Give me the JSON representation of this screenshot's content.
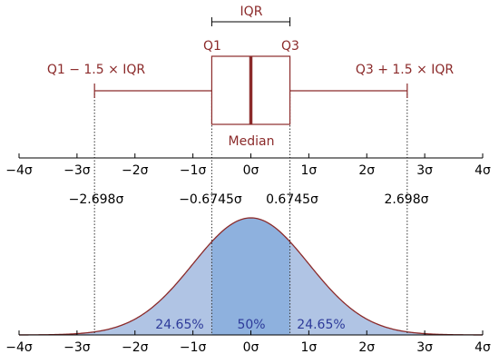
{
  "chart_data": {
    "type": "box-and-normal-distribution",
    "boxplot": {
      "iqr_label": "IQR",
      "q1_label": "Q1",
      "q3_label": "Q3",
      "median_label": "Median",
      "lower_whisker_label": "Q1 − 1.5 × IQR",
      "upper_whisker_label": "Q3 + 1.5 × IQR",
      "q1": -0.6745,
      "median": 0,
      "q3": 0.6745,
      "lower_whisker": -2.698,
      "upper_whisker": 2.698
    },
    "marker_labels": [
      "−2.698σ",
      "−0.6745σ",
      "0.6745σ",
      "2.698σ"
    ],
    "x_ticks": [
      -4,
      -3,
      -2,
      -1,
      0,
      1,
      2,
      3,
      4
    ],
    "x_tick_labels": [
      "−4σ",
      "−3σ",
      "−2σ",
      "−1σ",
      "0σ",
      "1σ",
      "2σ",
      "3σ",
      "4σ"
    ],
    "xlim": [
      -4,
      4
    ],
    "regions": [
      {
        "from": -2.698,
        "to": -0.6745,
        "label": "24.65%",
        "fill": "#b0c4e4"
      },
      {
        "from": -0.6745,
        "to": 0.6745,
        "label": "50%",
        "fill": "#8eb1de"
      },
      {
        "from": 0.6745,
        "to": 2.698,
        "label": "24.65%",
        "fill": "#b0c4e4"
      }
    ],
    "tail_fill": "#b0c4e4",
    "colors": {
      "box": "#8b2a2a",
      "curve": "#8b2a2a",
      "axis": "#000000",
      "percent_text": "#2d3a9a"
    }
  }
}
